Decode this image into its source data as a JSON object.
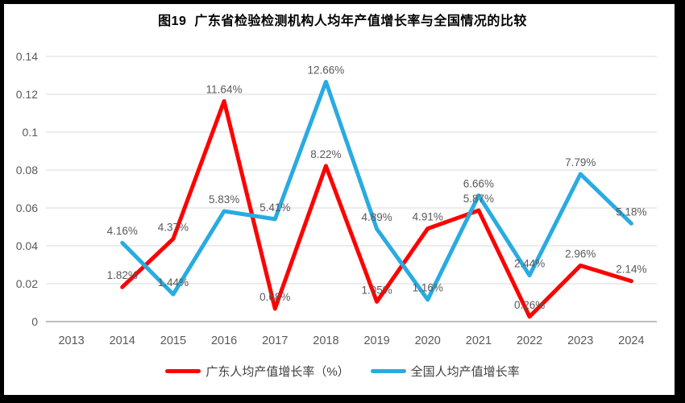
{
  "title": "图19  广东省检验检测机构人均年产值增长率与全国情况的比较",
  "chart_data": {
    "type": "line",
    "title": "图19  广东省检验检测机构人均年产值增长率与全国情况的比较",
    "categories": [
      "2013",
      "2014",
      "2015",
      "2016",
      "2017",
      "2018",
      "2019",
      "2020",
      "2021",
      "2022",
      "2023",
      "2024"
    ],
    "series": [
      {
        "name": "广东人均产值增长率（%）",
        "color": "#FF0000",
        "values": [
          null,
          0.0182,
          0.0437,
          0.1164,
          0.0068,
          0.0822,
          0.0105,
          0.0491,
          0.0587,
          0.0026,
          0.0296,
          0.0214
        ],
        "point_labels": [
          null,
          "1.82%",
          "4.37%",
          "11.64%",
          "0.68%",
          "8.22%",
          "1.05%",
          "4.91%",
          "5.87%",
          "0.26%",
          "2.96%",
          "2.14%"
        ]
      },
      {
        "name": "全国人均产值增长率",
        "color": "#29ABE2",
        "values": [
          null,
          0.0416,
          0.0144,
          0.0583,
          0.0541,
          0.1266,
          0.0489,
          0.0116,
          0.0666,
          0.0244,
          0.0779,
          0.0518
        ],
        "point_labels": [
          null,
          "4.16%",
          "1.44%",
          "5.83%",
          "5.41%",
          "12.66%",
          "4.89%",
          "1.16%",
          "6.66%",
          "2.44%",
          "7.79%",
          "5.18%"
        ]
      }
    ],
    "y_axis": {
      "min": 0,
      "max": 0.14,
      "step": 0.02,
      "tick_labels": [
        "0",
        "0.02",
        "0.04",
        "0.06",
        "0.08",
        "0.1",
        "0.12",
        "0.14"
      ]
    },
    "x_axis": {
      "tick_labels": [
        "2013",
        "2014",
        "2015",
        "2016",
        "2017",
        "2018",
        "2019",
        "2020",
        "2021",
        "2022",
        "2023",
        "2024"
      ]
    },
    "grid": true,
    "legend_position": "bottom",
    "colors": {
      "data_label": "#595959",
      "tick_label": "#595959",
      "gridline": "#D9D9D9",
      "axis_line": "#BFBFBF",
      "title": "#000000",
      "legend_text": "#404040",
      "frame": "#000000"
    }
  }
}
